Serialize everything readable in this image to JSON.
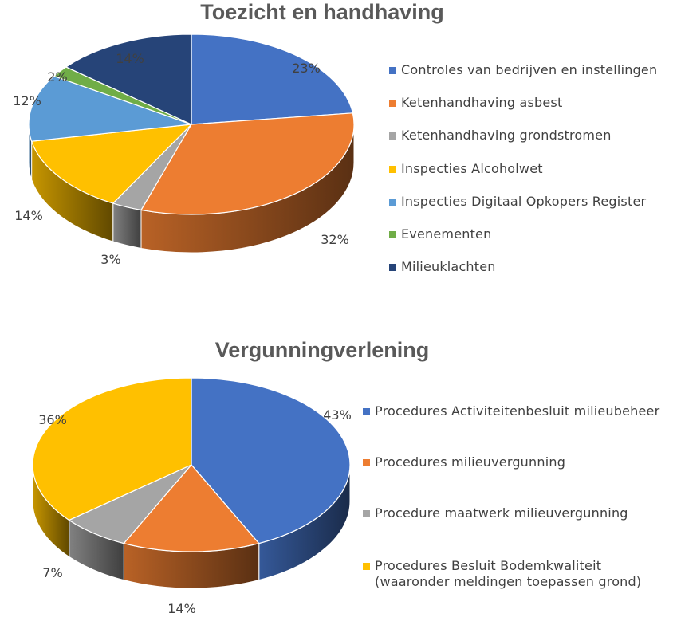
{
  "chart_data": [
    {
      "type": "pie",
      "title": "Toezicht en handhaving",
      "legend_position": "right",
      "style": "3d",
      "categories": [
        "Controles van bedrijven en instellingen",
        "Ketenhandhaving asbest",
        "Ketenhandhaving grondstromen",
        "Inspecties Alcoholwet",
        "Inspecties Digitaal Opkopers Register",
        "Evenementen",
        "Milieuklachten"
      ],
      "values": [
        23,
        32,
        3,
        14,
        12,
        2,
        14
      ],
      "labels": [
        "23%",
        "32%",
        "3%",
        "14%",
        "12%",
        "2%",
        "14%"
      ],
      "colors": [
        "#4472C4",
        "#ED7D31",
        "#A5A5A5",
        "#FFC000",
        "#5B9BD5",
        "#70AD47",
        "#264478"
      ]
    },
    {
      "type": "pie",
      "title": "Vergunningverlening",
      "legend_position": "right",
      "style": "3d",
      "categories": [
        "Procedures Activiteitenbesluit milieubeheer",
        "Procedures milieuvergunning",
        "Procedure maatwerk milieuvergunning",
        "Procedures Besluit Bodemkwaliteit (waaronder meldingen toepassen grond)"
      ],
      "values": [
        43,
        14,
        7,
        36
      ],
      "labels": [
        "43%",
        "14%",
        "7%",
        "36%"
      ],
      "colors": [
        "#4472C4",
        "#ED7D31",
        "#A5A5A5",
        "#FFC000"
      ]
    }
  ]
}
